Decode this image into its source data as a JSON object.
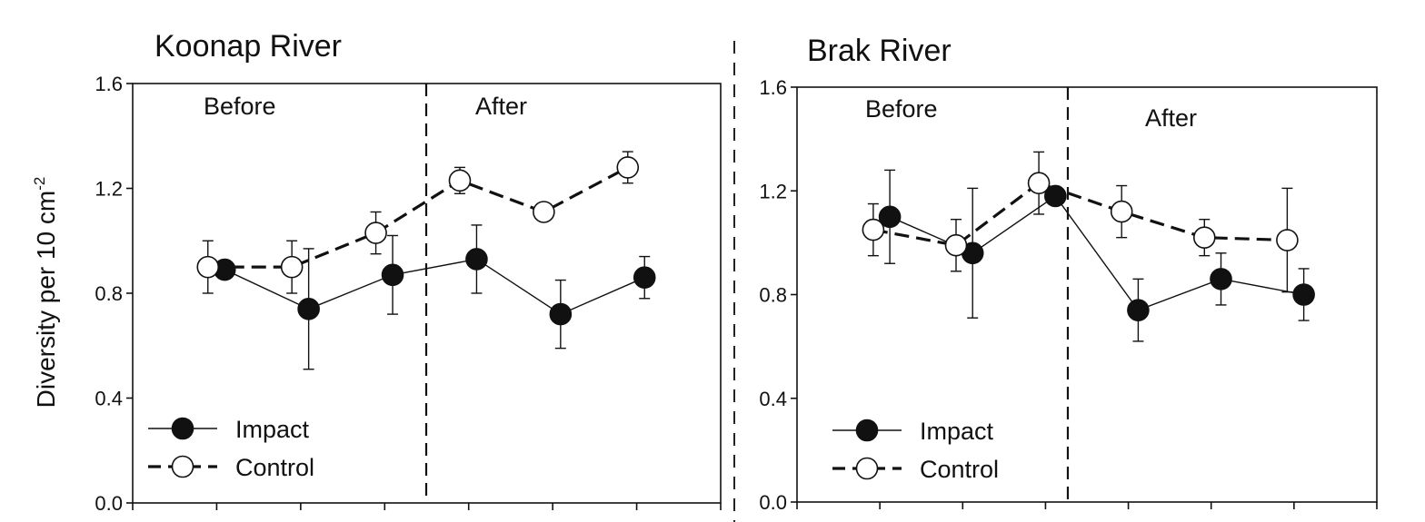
{
  "figure": {
    "y_label_main": "Diversity per 10 cm",
    "y_label_exp": "-2"
  },
  "chart_data": [
    {
      "type": "line",
      "title": "Koonap River",
      "xlabel": "",
      "ylabel": "Diversity per 10 cm-2",
      "ylim": [
        0,
        1.6
      ],
      "yticks": [
        "0.0",
        "0.4",
        "0.8",
        "1.2",
        "1.6"
      ],
      "phases": [
        "Before",
        "After"
      ],
      "series": [
        {
          "name": "Impact",
          "marker": "filled-circle",
          "line": "solid",
          "x": [
            1.1,
            2.1,
            3.1,
            4.1,
            5.1,
            6.1
          ],
          "values": [
            0.89,
            0.74,
            0.87,
            0.93,
            0.72,
            0.86
          ],
          "errors": [
            0.0,
            0.23,
            0.15,
            0.13,
            0.13,
            0.08
          ]
        },
        {
          "name": "Control",
          "marker": "open-circle",
          "line": "dashed",
          "x": [
            0.9,
            1.9,
            2.9,
            3.9,
            4.9,
            5.9
          ],
          "values": [
            0.9,
            0.9,
            1.03,
            1.23,
            1.11,
            1.28
          ],
          "errors": [
            0.1,
            0.1,
            0.08,
            0.05,
            0.0,
            0.06
          ]
        }
      ],
      "before_after_x": 3.5,
      "legend": "bottom-left",
      "grid": false
    },
    {
      "type": "line",
      "title": "Brak River",
      "xlabel": "",
      "ylabel": "",
      "ylim": [
        0,
        1.6
      ],
      "yticks": [
        "0.0",
        "0.4",
        "0.8",
        "1.2",
        "1.6"
      ],
      "phases": [
        "Before",
        "After"
      ],
      "series": [
        {
          "name": "Impact",
          "marker": "filled-circle",
          "line": "solid",
          "x": [
            1.1,
            2.1,
            3.1,
            4.1,
            5.1,
            6.1
          ],
          "values": [
            1.1,
            0.96,
            1.18,
            0.74,
            0.86,
            0.8
          ],
          "errors": [
            0.18,
            0.25,
            0.03,
            0.12,
            0.1,
            0.1
          ]
        },
        {
          "name": "Control",
          "marker": "open-circle",
          "line": "dashed",
          "x": [
            0.9,
            1.9,
            2.9,
            3.9,
            4.9,
            5.9
          ],
          "values": [
            1.05,
            0.99,
            1.23,
            1.12,
            1.02,
            1.01
          ],
          "errors": [
            0.1,
            0.1,
            0.12,
            0.1,
            0.07,
            0.2
          ]
        }
      ],
      "before_after_x": 3.25,
      "legend": "bottom-left",
      "grid": false
    }
  ]
}
